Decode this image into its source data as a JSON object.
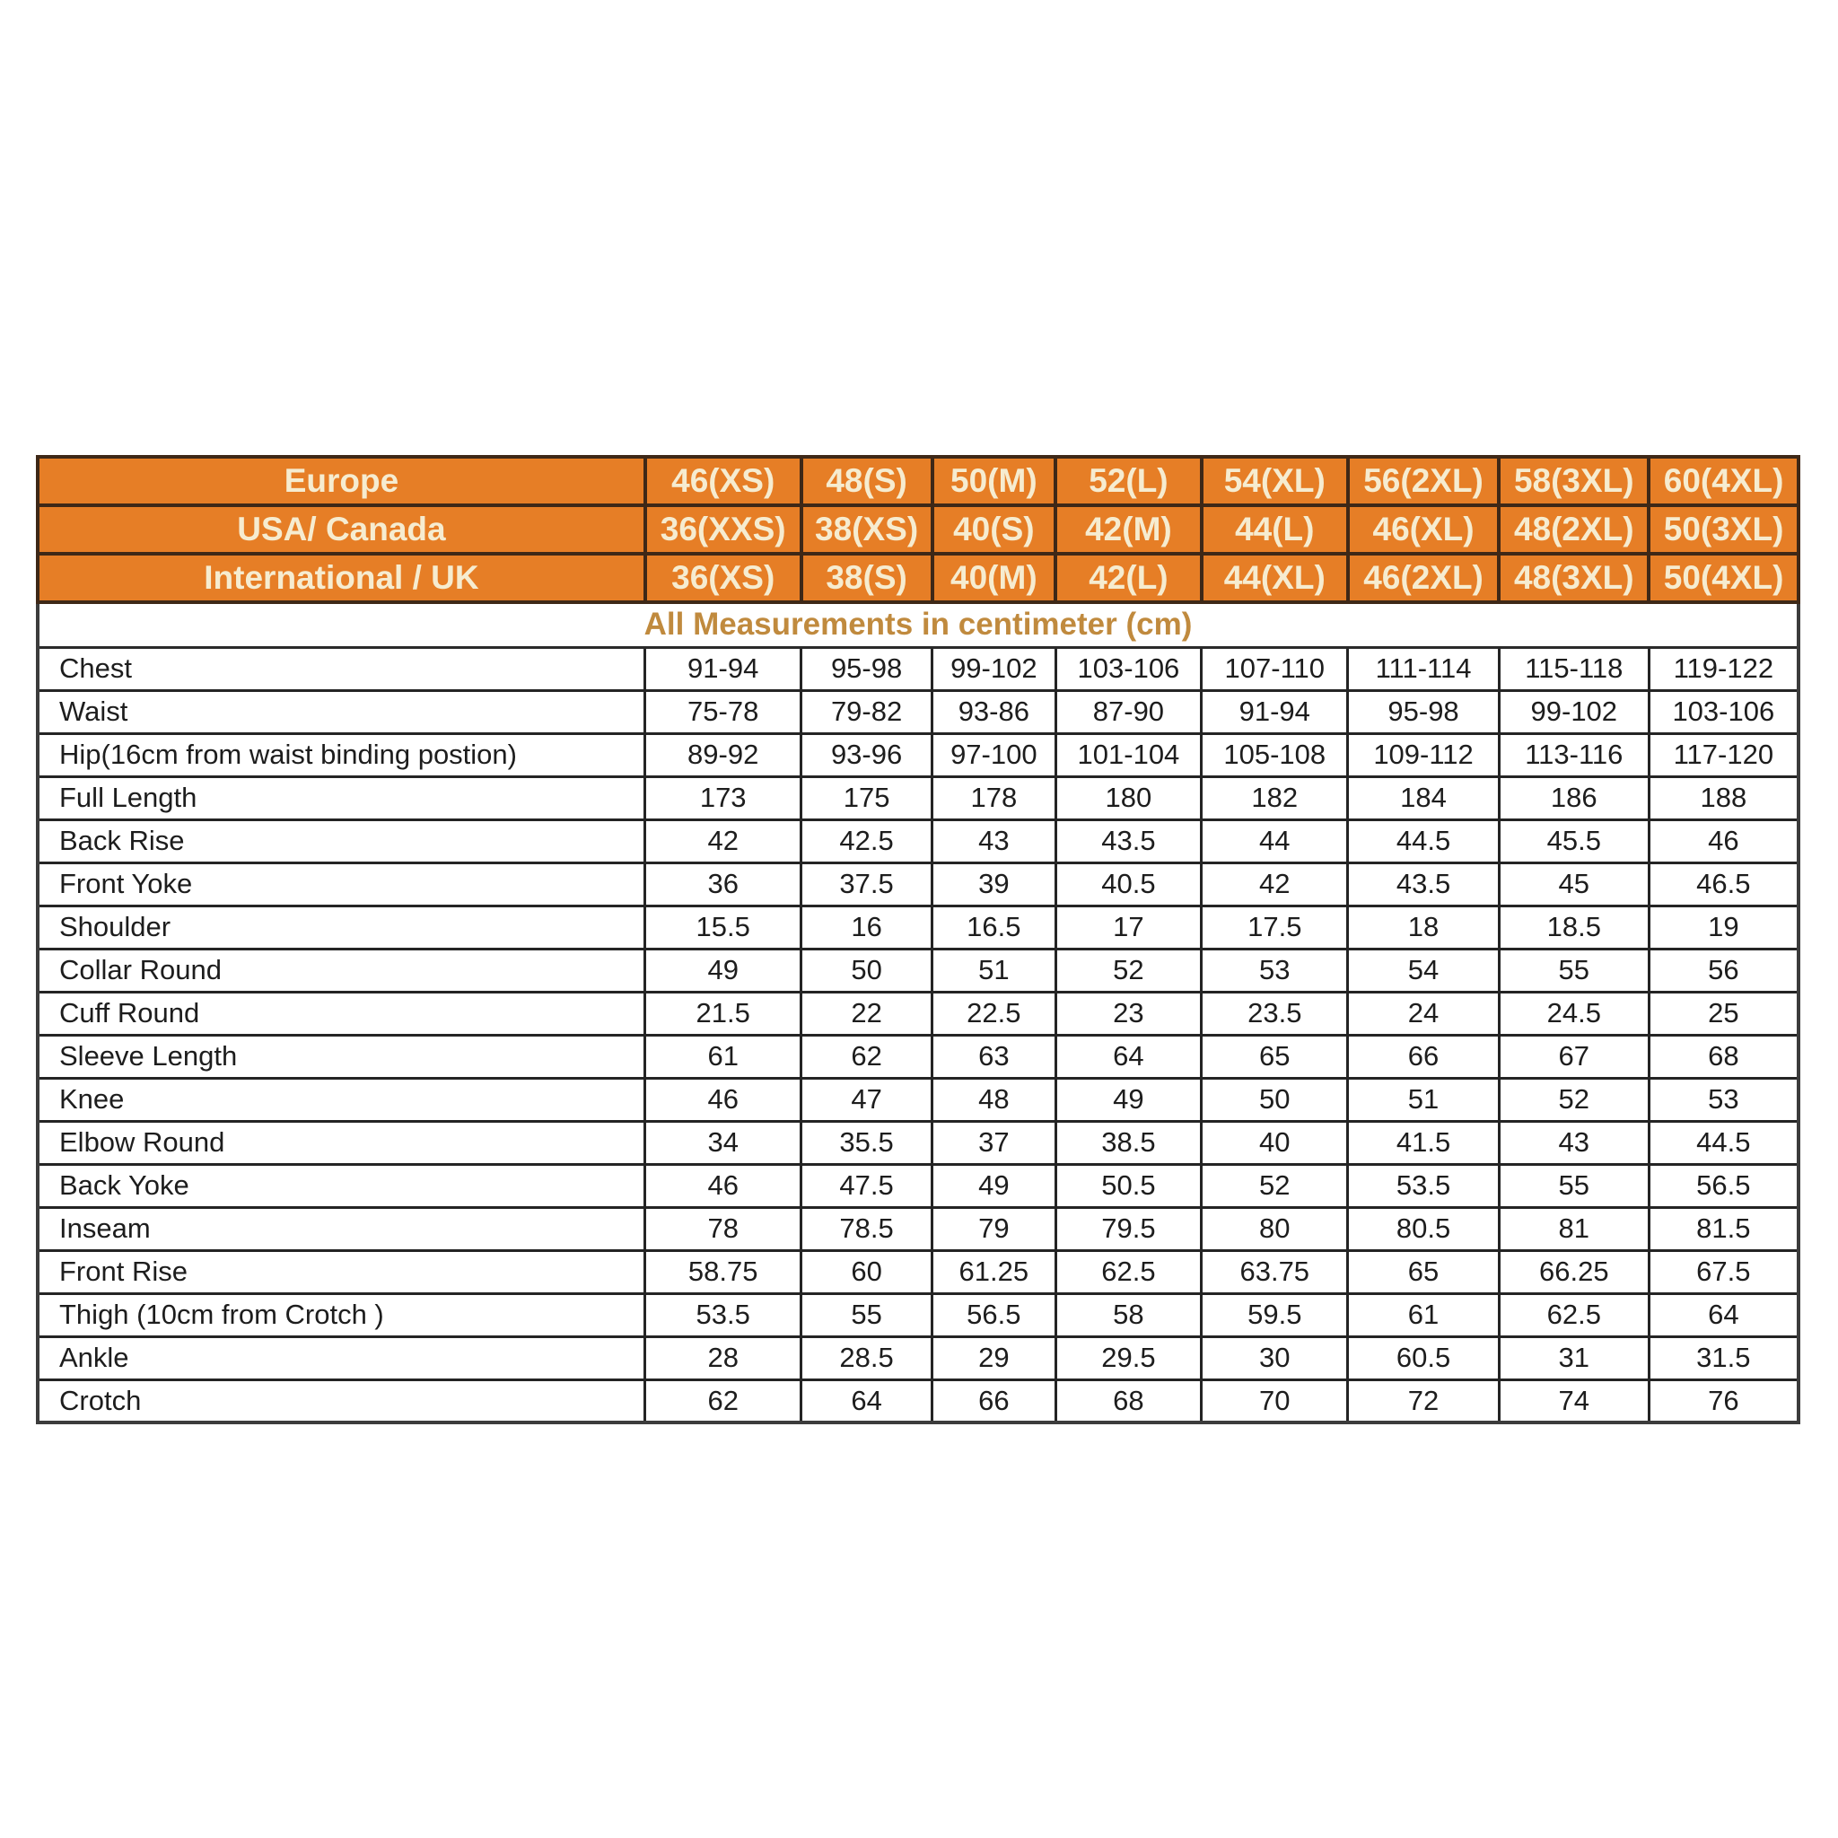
{
  "chart_data": {
    "type": "table",
    "title": "All Measurements in centimeter (cm)",
    "size_systems": [
      {
        "region": "Europe",
        "sizes": [
          "46(XS)",
          "48(S)",
          "50(M)",
          "52(L)",
          "54(XL)",
          "56(2XL)",
          "58(3XL)",
          "60(4XL)"
        ]
      },
      {
        "region": "USA/ Canada",
        "sizes": [
          "36(XXS)",
          "38(XS)",
          "40(S)",
          "42(M)",
          "44(L)",
          "46(XL)",
          "48(2XL)",
          "50(3XL)"
        ]
      },
      {
        "region": "International / UK",
        "sizes": [
          "36(XS)",
          "38(S)",
          "40(M)",
          "42(L)",
          "44(XL)",
          "46(2XL)",
          "48(3XL)",
          "50(4XL)"
        ]
      }
    ],
    "measurements": [
      {
        "label": "Chest",
        "values": [
          "91-94",
          "95-98",
          "99-102",
          "103-106",
          "107-110",
          "111-114",
          "115-118",
          "119-122"
        ]
      },
      {
        "label": "Waist",
        "values": [
          "75-78",
          "79-82",
          "93-86",
          "87-90",
          "91-94",
          "95-98",
          "99-102",
          "103-106"
        ]
      },
      {
        "label": "Hip(16cm from waist binding postion)",
        "values": [
          "89-92",
          "93-96",
          "97-100",
          "101-104",
          "105-108",
          "109-112",
          "113-116",
          "117-120"
        ]
      },
      {
        "label": "Full Length",
        "values": [
          "173",
          "175",
          "178",
          "180",
          "182",
          "184",
          "186",
          "188"
        ]
      },
      {
        "label": "Back Rise",
        "values": [
          "42",
          "42.5",
          "43",
          "43.5",
          "44",
          "44.5",
          "45.5",
          "46"
        ]
      },
      {
        "label": "Front Yoke",
        "values": [
          "36",
          "37.5",
          "39",
          "40.5",
          "42",
          "43.5",
          "45",
          "46.5"
        ]
      },
      {
        "label": "Shoulder",
        "values": [
          "15.5",
          "16",
          "16.5",
          "17",
          "17.5",
          "18",
          "18.5",
          "19"
        ]
      },
      {
        "label": "Collar Round",
        "values": [
          "49",
          "50",
          "51",
          "52",
          "53",
          "54",
          "55",
          "56"
        ]
      },
      {
        "label": "Cuff Round",
        "values": [
          "21.5",
          "22",
          "22.5",
          "23",
          "23.5",
          "24",
          "24.5",
          "25"
        ]
      },
      {
        "label": "Sleeve Length",
        "values": [
          "61",
          "62",
          "63",
          "64",
          "65",
          "66",
          "67",
          "68"
        ]
      },
      {
        "label": "Knee",
        "values": [
          "46",
          "47",
          "48",
          "49",
          "50",
          "51",
          "52",
          "53"
        ]
      },
      {
        "label": "Elbow Round",
        "values": [
          "34",
          "35.5",
          "37",
          "38.5",
          "40",
          "41.5",
          "43",
          "44.5"
        ]
      },
      {
        "label": "Back Yoke",
        "values": [
          "46",
          "47.5",
          "49",
          "50.5",
          "52",
          "53.5",
          "55",
          "56.5"
        ]
      },
      {
        "label": "Inseam",
        "values": [
          "78",
          "78.5",
          "79",
          "79.5",
          "80",
          "80.5",
          "81",
          "81.5"
        ]
      },
      {
        "label": "Front Rise",
        "values": [
          "58.75",
          "60",
          "61.25",
          "62.5",
          "63.75",
          "65",
          "66.25",
          "67.5"
        ]
      },
      {
        "label": "Thigh (10cm from Crotch )",
        "values": [
          "53.5",
          "55",
          "56.5",
          "58",
          "59.5",
          "61",
          "62.5",
          "64"
        ]
      },
      {
        "label": "Ankle",
        "values": [
          "28",
          "28.5",
          "29",
          "29.5",
          "30",
          "60.5",
          "31",
          "31.5"
        ]
      },
      {
        "label": "Crotch",
        "values": [
          "62",
          "64",
          "66",
          "68",
          "70",
          "72",
          "74",
          "76"
        ]
      }
    ],
    "layout": {
      "legend_position": "none",
      "grid": true,
      "columns": 9
    },
    "colors": {
      "header_background": "#E67E26",
      "header_text": "#F6ECD0",
      "subtitle_text": "#C08A3E",
      "body_text": "#1d1d1d",
      "header_border": "#3e2817",
      "body_border": "#242424",
      "page_background": "#ffffff"
    }
  }
}
